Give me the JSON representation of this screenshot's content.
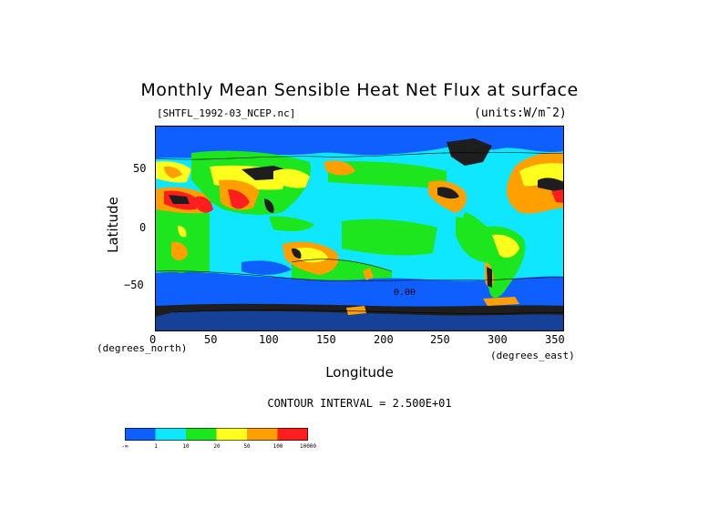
{
  "title": "Monthly Mean Sensible Heat Net Flux at surface",
  "file_label": "[SHTFL_1992-03_NCEP.nc]",
  "units_label": "(units:W/m¯2)",
  "axes": {
    "ylabel": "Latitude",
    "xlabel": "Longitude",
    "y_unit": "(degrees_north)",
    "x_unit": "(degrees_east)",
    "yticks": [
      "50",
      "0",
      "−50"
    ],
    "xticks": [
      "0",
      "50",
      "100",
      "150",
      "200",
      "250",
      "300",
      "350"
    ],
    "xlim": [
      0,
      360
    ],
    "ylim": [
      -90,
      90
    ]
  },
  "contour_text": "CONTOUR INTERVAL = 2.500E+01",
  "colors": {
    "cat0": "#0f5fff",
    "cat1": "#0fe6ff",
    "cat2": "#1ee61e",
    "cat3": "#ffff1e",
    "cat4": "#ffa000",
    "cat5": "#ff1e1e"
  },
  "legend": {
    "labels": [
      "-∞",
      "1",
      "10",
      "20",
      "50",
      "100",
      "10000"
    ]
  },
  "contour_labels": [
    "0.00"
  ]
}
